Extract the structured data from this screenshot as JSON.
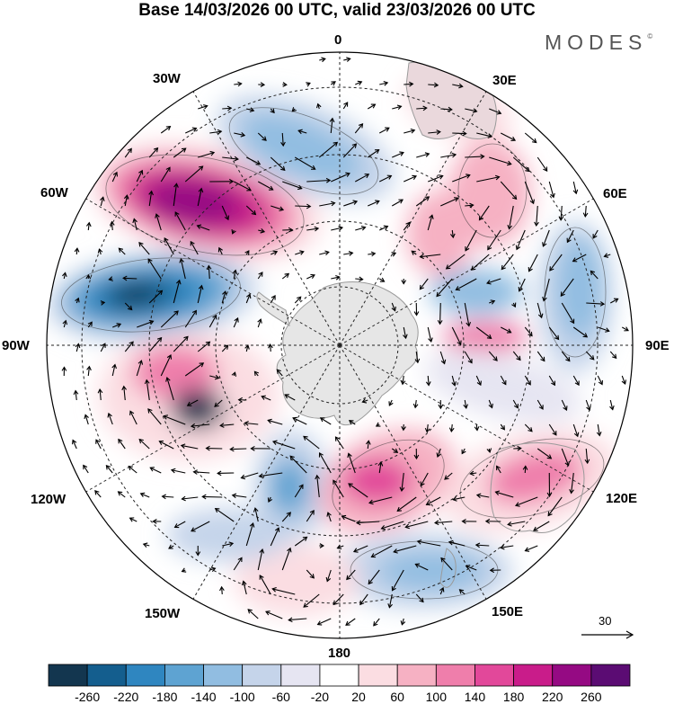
{
  "title": "Base 14/03/2026 00 UTC, valid 23/03/2026 00 UTC",
  "brand": "MODES",
  "brand_mark": "©",
  "map": {
    "projection": "south-polar-stereographic",
    "longitude_labels": {
      "lon_0": "0",
      "lon_30e": "30E",
      "lon_60e": "60E",
      "lon_90e": "90E",
      "lon_120e": "120E",
      "lon_150e": "150E",
      "lon_180": "180",
      "lon_150w": "150W",
      "lon_120w": "120W",
      "lon_90w": "90W",
      "lon_60w": "60W",
      "lon_30w": "30W"
    },
    "vector_reference": "30",
    "fill_colors": {
      "land": "#e6e6e6",
      "coast": "#9a9a9a",
      "grid": "#222222"
    }
  },
  "colorbar": {
    "ticks": [
      "-260",
      "-220",
      "-180",
      "-140",
      "-100",
      "-60",
      "-20",
      "20",
      "60",
      "100",
      "140",
      "180",
      "220",
      "260"
    ],
    "colors": [
      "#13364f",
      "#145e8e",
      "#2f86c0",
      "#5ea3d2",
      "#91bde1",
      "#c5d4ea",
      "#e6e5f2",
      "#ffffff",
      "#fbdde2",
      "#f6b1c3",
      "#ef7eab",
      "#e2489a",
      "#c91c8a",
      "#950a83",
      "#5b0c73"
    ]
  }
}
